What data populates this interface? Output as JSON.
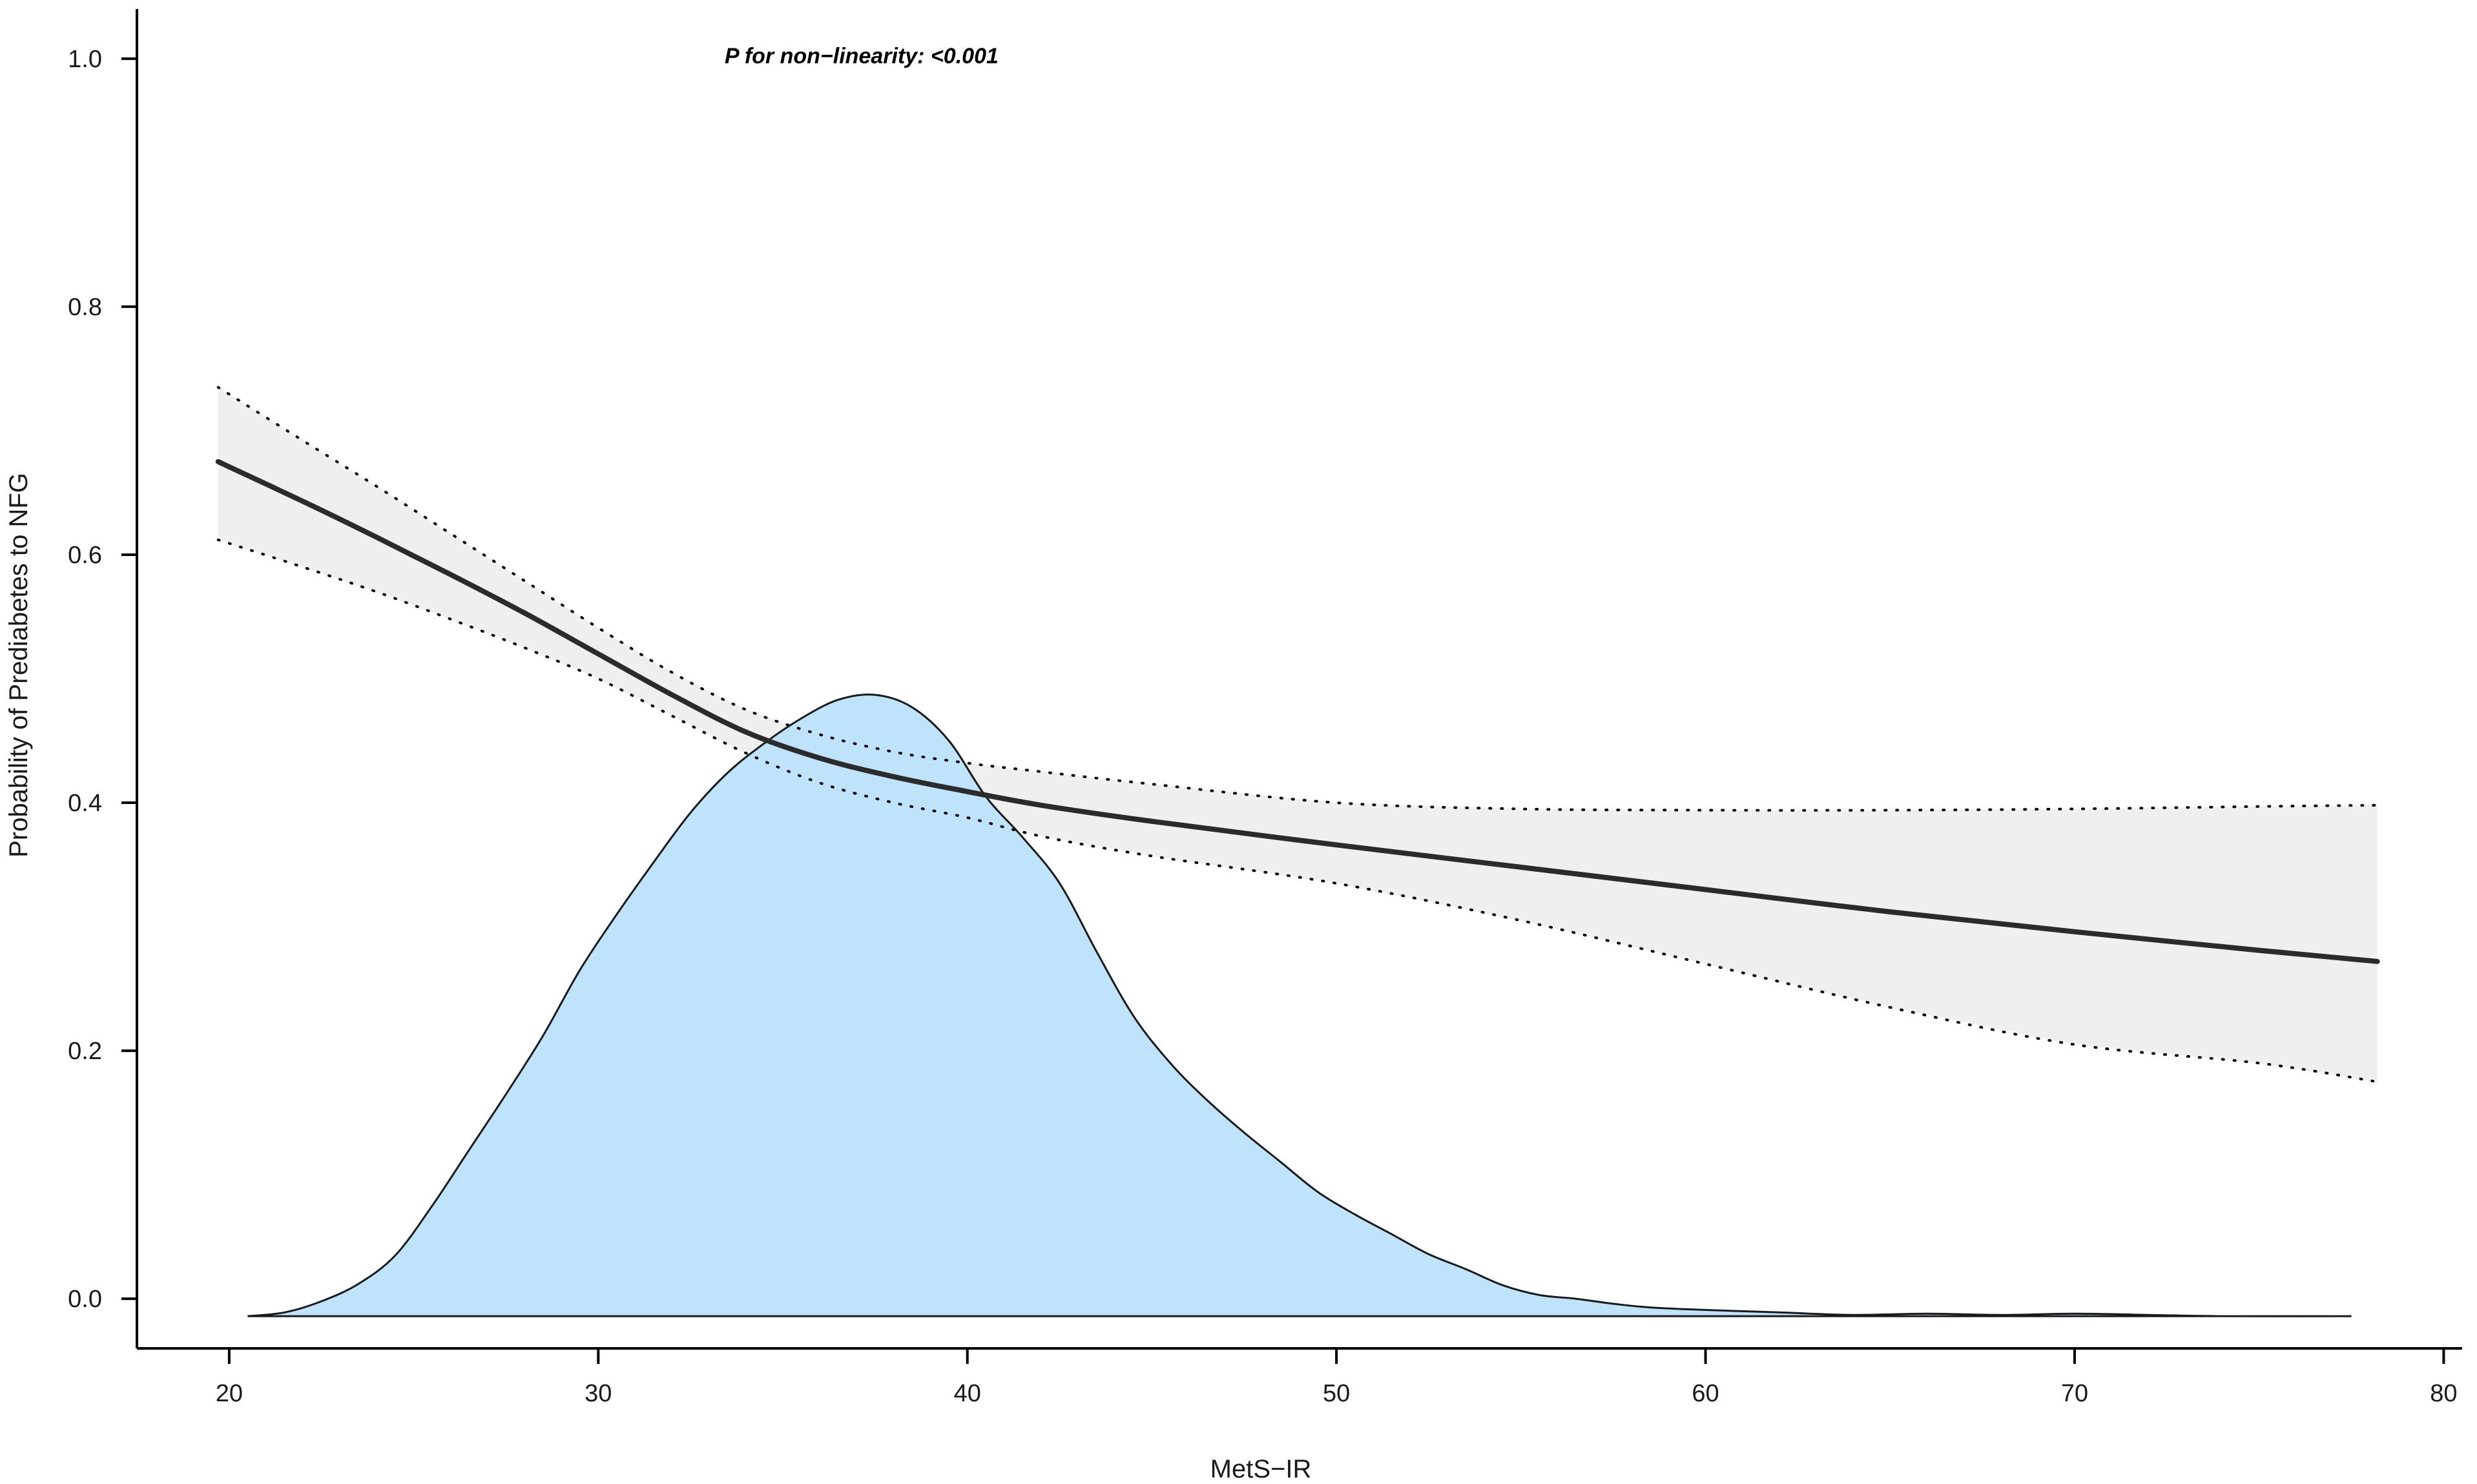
{
  "chart_data": {
    "type": "line",
    "title": "",
    "xlabel": "MetS−IR",
    "ylabel": "Probability of Prediabetes to NFG",
    "xlim": [
      17.5,
      80.5
    ],
    "ylim": [
      -0.04,
      1.04
    ],
    "x_ticks": [
      20,
      30,
      40,
      50,
      60,
      70,
      80
    ],
    "y_ticks": [
      0.0,
      0.2,
      0.4,
      0.6,
      0.8,
      1.0
    ],
    "x_tick_labels": [
      "20",
      "30",
      "40",
      "50",
      "60",
      "70",
      "80"
    ],
    "y_tick_labels": [
      "0.0",
      "0.2",
      "0.4",
      "0.6",
      "0.8",
      "1.0"
    ],
    "annotation": "P for non−linearity: <0.001",
    "grid": false,
    "colors": {
      "line": "#2b2b2b",
      "ci_fill": "#efefef",
      "density_fill": "#bfe3fa",
      "density_stroke": "#1a1a1a",
      "axis": "#000000"
    },
    "series": [
      {
        "role": "estimate",
        "style": "solid",
        "x": [
          19.7,
          22,
          24,
          26,
          28,
          30,
          32,
          34,
          36,
          38,
          40,
          42,
          45,
          50,
          55,
          60,
          65,
          70,
          75,
          78.2
        ],
        "y": [
          0.675,
          0.643,
          0.614,
          0.584,
          0.553,
          0.52,
          0.487,
          0.457,
          0.436,
          0.421,
          0.409,
          0.398,
          0.385,
          0.366,
          0.348,
          0.33,
          0.312,
          0.296,
          0.281,
          0.272
        ]
      },
      {
        "role": "upper_ci",
        "style": "dotted",
        "x": [
          19.7,
          22,
          24,
          26,
          28,
          30,
          32,
          34,
          36,
          38,
          40,
          42,
          45,
          50,
          55,
          60,
          65,
          70,
          75,
          78.2
        ],
        "y": [
          0.735,
          0.692,
          0.655,
          0.617,
          0.579,
          0.541,
          0.505,
          0.475,
          0.455,
          0.441,
          0.432,
          0.425,
          0.415,
          0.4,
          0.395,
          0.394,
          0.394,
          0.395,
          0.397,
          0.398
        ]
      },
      {
        "role": "lower_ci",
        "style": "dotted",
        "x": [
          19.7,
          22,
          24,
          26,
          28,
          30,
          32,
          34,
          36,
          38,
          40,
          42,
          45,
          50,
          55,
          60,
          65,
          70,
          75,
          78.2
        ],
        "y": [
          0.612,
          0.59,
          0.57,
          0.548,
          0.525,
          0.5,
          0.47,
          0.44,
          0.416,
          0.4,
          0.388,
          0.373,
          0.357,
          0.335,
          0.305,
          0.27,
          0.235,
          0.205,
          0.19,
          0.175
        ]
      }
    ],
    "density": {
      "baseline": -0.014,
      "x": [
        20.5,
        21.5,
        22.5,
        23.5,
        24.5,
        25.5,
        26.5,
        27.5,
        28.5,
        29.5,
        30.5,
        31.5,
        32.5,
        33.5,
        34.5,
        35.5,
        36.5,
        37.5,
        38.5,
        39.5,
        40.5,
        41.5,
        42.5,
        43.5,
        44.5,
        45.5,
        46.5,
        47.5,
        48.5,
        49.5,
        50.5,
        51.5,
        52.5,
        53.5,
        54.5,
        55.5,
        56.5,
        57.5,
        58.5,
        60,
        62,
        64,
        66,
        68,
        70,
        72,
        74,
        77.5
      ],
      "y": [
        -0.014,
        -0.011,
        -0.002,
        0.012,
        0.035,
        0.075,
        0.12,
        0.165,
        0.212,
        0.265,
        0.31,
        0.352,
        0.392,
        0.424,
        0.448,
        0.468,
        0.483,
        0.487,
        0.477,
        0.45,
        0.405,
        0.372,
        0.335,
        0.28,
        0.228,
        0.19,
        0.16,
        0.134,
        0.11,
        0.086,
        0.068,
        0.052,
        0.036,
        0.024,
        0.011,
        0.003,
        0.0,
        -0.004,
        -0.007,
        -0.009,
        -0.011,
        -0.013,
        -0.012,
        -0.013,
        -0.012,
        -0.013,
        -0.014,
        -0.014
      ]
    }
  }
}
